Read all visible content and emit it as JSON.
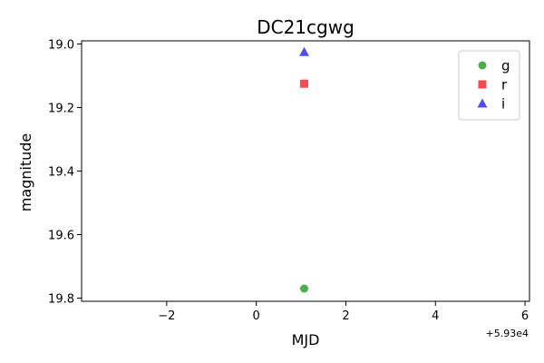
{
  "chart_data": {
    "type": "scatter",
    "title": "DC21cgwg",
    "xlabel": "MJD",
    "ylabel": "magnitude",
    "x_offset_label": "+5.93e4",
    "xlim": [
      -3.9,
      6.1
    ],
    "ylim": [
      19.81,
      18.99
    ],
    "y_inverted": true,
    "x_ticks": [
      -2,
      0,
      2,
      4,
      6
    ],
    "x_tick_labels": [
      "−2",
      "0",
      "2",
      "4",
      "6"
    ],
    "y_ticks": [
      19.0,
      19.2,
      19.4,
      19.6,
      19.8
    ],
    "y_tick_labels": [
      "19.0",
      "19.2",
      "19.4",
      "19.6",
      "19.8"
    ],
    "grid": false,
    "legend_position": "top-right",
    "series": [
      {
        "name": "g",
        "marker": "circle",
        "color": "#2ca02c",
        "x": [
          1.07
        ],
        "y": [
          19.77
        ]
      },
      {
        "name": "r",
        "marker": "square",
        "color": "#f03c3c",
        "x": [
          1.07
        ],
        "y": [
          19.125
        ]
      },
      {
        "name": "i",
        "marker": "triangle",
        "color": "#3c3cf0",
        "x": [
          1.07
        ],
        "y": [
          19.025
        ]
      }
    ]
  }
}
